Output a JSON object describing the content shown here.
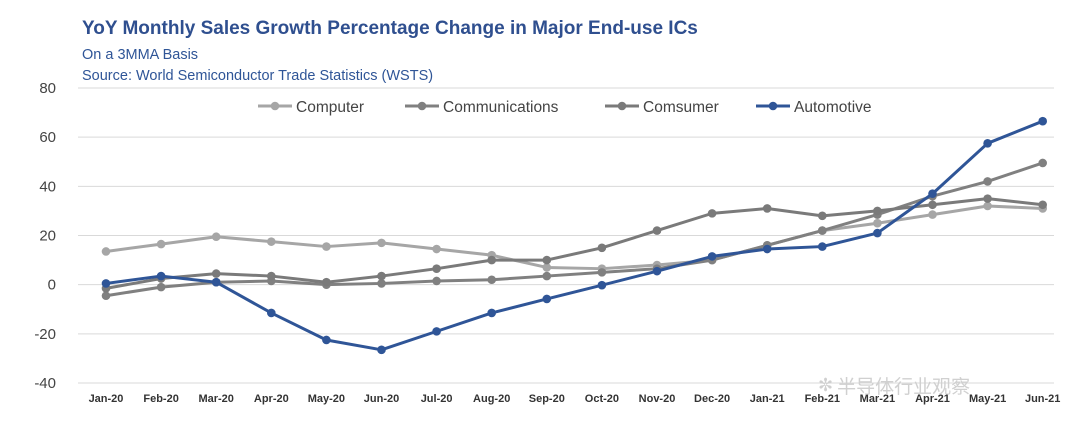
{
  "chart_data": {
    "type": "line",
    "title": "YoY Monthly Sales Growth Percentage Change in Major End-use ICs",
    "subtitle": "On a 3MMA Basis",
    "source": "Source: World Semiconductor Trade Statistics (WSTS)",
    "xlabel": "",
    "ylabel": "",
    "ylim": [
      -40,
      80
    ],
    "yticks": [
      80,
      60,
      40,
      20,
      0,
      -20,
      -40
    ],
    "grid": true,
    "legend_position": "top",
    "categories": [
      "Jan-20",
      "Feb-20",
      "Mar-20",
      "Apr-20",
      "May-20",
      "Jun-20",
      "Jul-20",
      "Aug-20",
      "Sep-20",
      "Oct-20",
      "Nov-20",
      "Dec-20",
      "Jan-21",
      "Feb-21",
      "Mar-21",
      "Apr-21",
      "May-21",
      "Jun-21"
    ],
    "series": [
      {
        "name": "Computer",
        "color": "#a6a6a6",
        "values": [
          13.5,
          16.5,
          19.5,
          17.5,
          15.5,
          17,
          14.5,
          12,
          7,
          6.5,
          8,
          10,
          16,
          22,
          25,
          28.5,
          32,
          31
        ]
      },
      {
        "name": "Communications",
        "color": "#808080",
        "values": [
          -4.5,
          -1,
          1,
          1.5,
          0,
          0.5,
          1.5,
          2,
          3.5,
          5,
          6.5,
          10,
          16,
          22,
          28.5,
          36,
          42,
          49.5
        ]
      },
      {
        "name": "Comsumer",
        "color": "#7a7a7a",
        "values": [
          -1.5,
          2.5,
          4.5,
          3.5,
          1,
          3.5,
          6.5,
          10,
          10,
          15,
          22,
          29,
          31,
          28,
          30,
          32.5,
          35,
          32.5
        ]
      },
      {
        "name": "Automotive",
        "color": "#2f5597",
        "values": [
          0.5,
          3.5,
          1,
          -11.5,
          -22.5,
          -26.5,
          -19,
          -11.5,
          -5.8,
          -0.2,
          5.5,
          11.5,
          14.5,
          15.5,
          21,
          37,
          57.5,
          66.5
        ]
      }
    ]
  },
  "watermark": {
    "icon": "wechat-icon",
    "text": "半导体行业观察"
  }
}
